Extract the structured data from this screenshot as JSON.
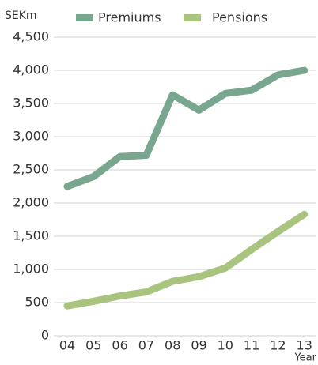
{
  "chart_data": {
    "type": "line",
    "y_label": "SEKm",
    "x_label": "Year",
    "categories": [
      "04",
      "05",
      "06",
      "07",
      "08",
      "09",
      "10",
      "11",
      "12",
      "13"
    ],
    "series": [
      {
        "name": "Premiums",
        "color": "#78a68f",
        "values": [
          2250,
          2400,
          2700,
          2720,
          3630,
          3400,
          3650,
          3700,
          3930,
          4000
        ]
      },
      {
        "name": "Pensions",
        "color": "#a9c47f",
        "values": [
          450,
          520,
          600,
          660,
          820,
          890,
          1020,
          1300,
          1570,
          1830
        ]
      }
    ],
    "ylim": [
      0,
      4500
    ],
    "yticks": [
      0,
      500,
      {
        "value": 1000,
        "label": "1,000"
      },
      {
        "value": 1500,
        "label": "1,500"
      },
      {
        "value": 2000,
        "label": "2,000"
      },
      {
        "value": 2500,
        "label": "2,500"
      },
      {
        "value": 3000,
        "label": "3,000"
      },
      {
        "value": 3500,
        "label": "3,500"
      },
      {
        "value": 4000,
        "label": "4,000"
      },
      {
        "value": 4500,
        "label": "4,500"
      }
    ],
    "grid": true,
    "legend": "top"
  }
}
